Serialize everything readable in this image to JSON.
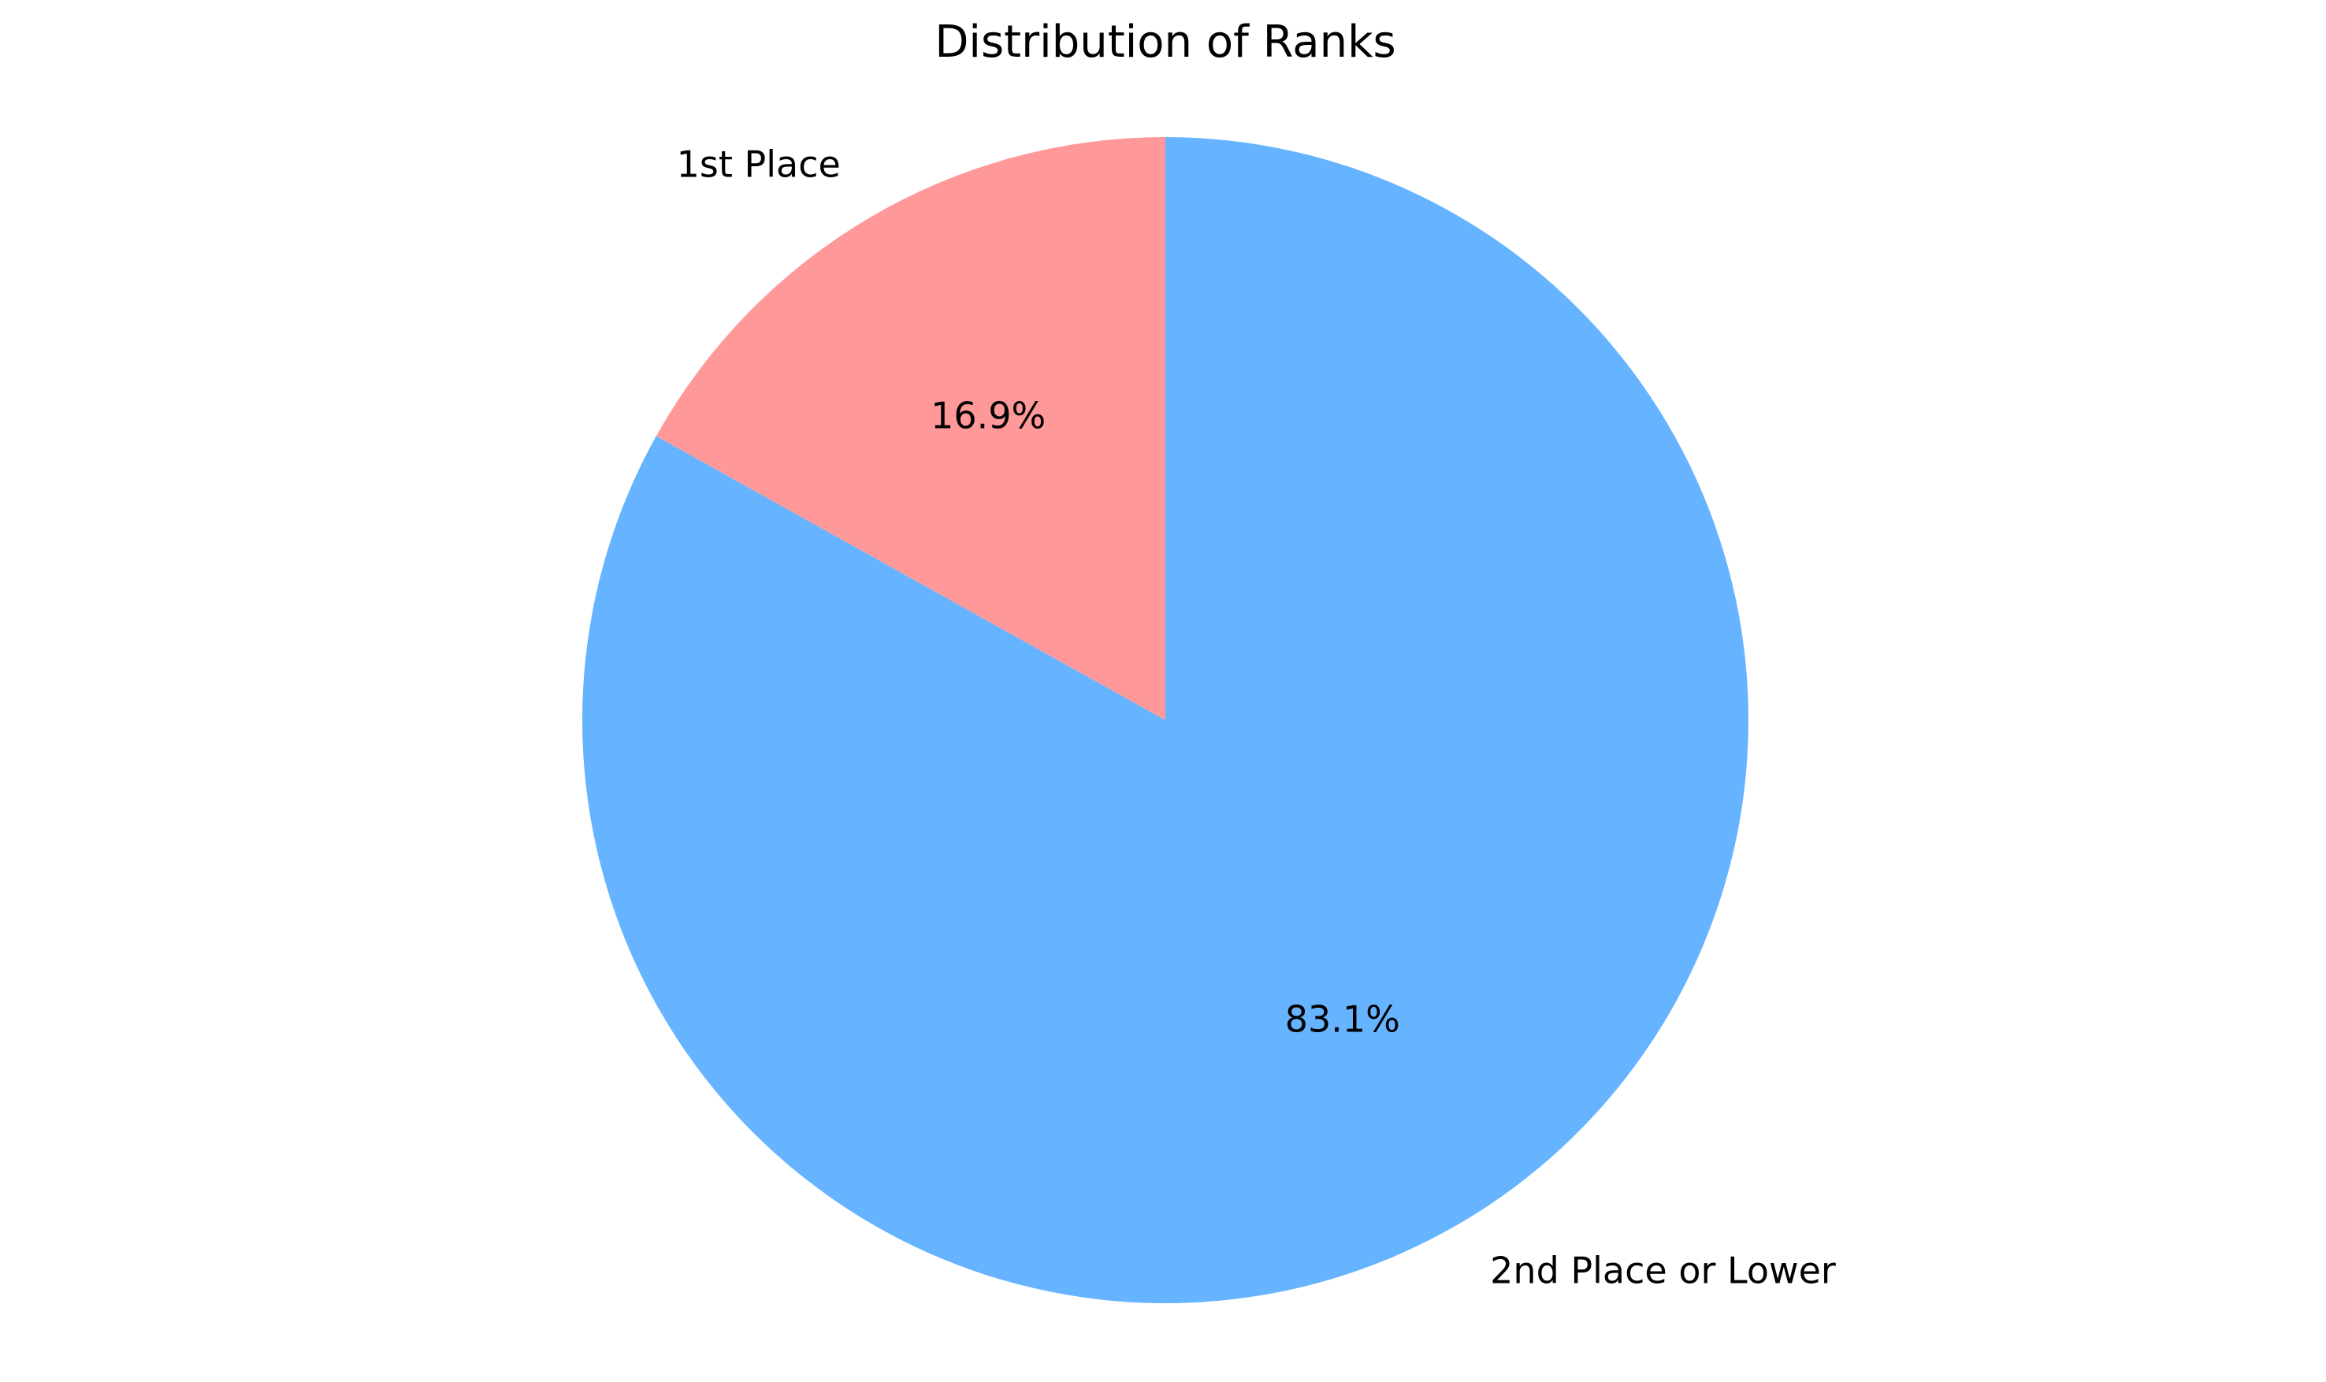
{
  "chart_data": {
    "type": "pie",
    "title": "Distribution of Ranks",
    "categories": [
      "1st Place",
      "2nd Place or Lower"
    ],
    "values": [
      16.9,
      83.1
    ],
    "percent_labels": [
      "16.9%",
      "83.1%"
    ],
    "colors": [
      "#ff9999",
      "#66b3ff"
    ],
    "start_angle_deg": 90,
    "direction": "counterclockwise",
    "legend": "none"
  }
}
